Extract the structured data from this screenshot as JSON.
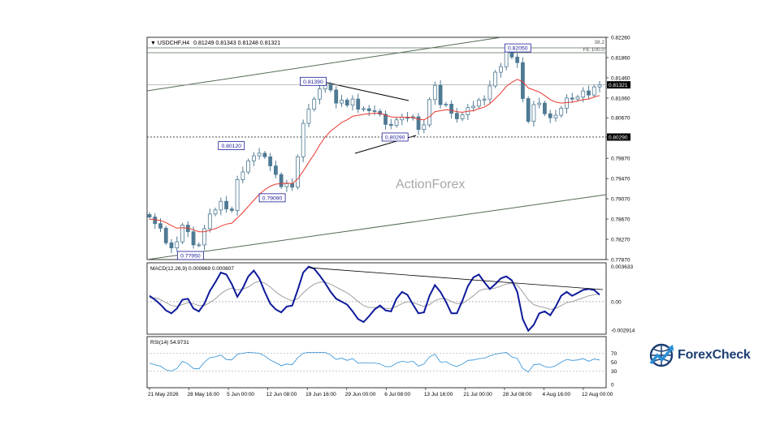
{
  "chart_data": [
    {
      "type": "candlestick",
      "title": "USDCHF,H4",
      "ohlc": "0.81249 0.81343 0.81248 0.81321",
      "ylim": [
        0.7787,
        0.8226
      ],
      "y_ticks": [
        "0.82260",
        "0.81860",
        "0.81460",
        "0.81060",
        "0.80670",
        "0.80290",
        "0.79870",
        "0.79470",
        "0.79070",
        "0.78670",
        "0.78270",
        "0.77870"
      ],
      "x_ticks": [
        "21 May 2026",
        "28 May 16:00",
        "5 Jun 00:00",
        "12 Jun 08:00",
        "19 Jun 16:00",
        "29 Jun 00:00",
        "6 Jul 08:00",
        "13 Jul 16:00",
        "21 Jul 00:00",
        "28 Jul 08:00",
        "4 Aug 16:00",
        "12 Aug 00:00"
      ],
      "current_price": "0.81321",
      "support_level": "0.80290",
      "fib_labels": [
        "38.2",
        "FE 100.0"
      ],
      "watermark": "ActionForex",
      "annotations": [
        {
          "label": "0.77950",
          "x": "28 May 16:00",
          "y": 0.7795
        },
        {
          "label": "0.80120",
          "x": "5 Jun 00:00",
          "y": 0.8012
        },
        {
          "label": "0.79090",
          "x": "12 Jun 08:00",
          "y": 0.7909
        },
        {
          "label": "0.81390",
          "x": "19 Jun 16:00",
          "y": 0.8139
        },
        {
          "label": "0.80290",
          "x": "6 Jul 08:00",
          "y": 0.8029
        },
        {
          "label": "0.82050",
          "x": "28 Jul 08:00",
          "y": 0.8205
        }
      ],
      "series": [
        {
          "name": "close",
          "values": [
            0.7871,
            0.7858,
            0.7849,
            0.782,
            0.781,
            0.7822,
            0.7855,
            0.7842,
            0.7816,
            0.7816,
            0.7848,
            0.7877,
            0.7885,
            0.7902,
            0.7887,
            0.7884,
            0.7945,
            0.796,
            0.7982,
            0.7992,
            0.7997,
            0.799,
            0.7972,
            0.7955,
            0.7931,
            0.7937,
            0.793,
            0.799,
            0.8056,
            0.8084,
            0.8104,
            0.8124,
            0.8133,
            0.8122,
            0.8096,
            0.8102,
            0.8092,
            0.8104,
            0.8084,
            0.8085,
            0.8081,
            0.808,
            0.8074,
            0.8054,
            0.8052,
            0.8063,
            0.8068,
            0.8066,
            0.8069,
            0.8044,
            0.8053,
            0.8103,
            0.8131,
            0.8093,
            0.8094,
            0.8076,
            0.8065,
            0.8073,
            0.8087,
            0.809,
            0.8102,
            0.8104,
            0.813,
            0.8157,
            0.8168,
            0.8197,
            0.8187,
            0.8176,
            0.8105,
            0.806,
            0.8093,
            0.8096,
            0.8075,
            0.8067,
            0.8072,
            0.8086,
            0.8106,
            0.8104,
            0.8108,
            0.812,
            0.8112,
            0.8128,
            0.8132
          ]
        },
        {
          "name": "moving_average",
          "values": [
            0.7867,
            0.7866,
            0.7864,
            0.786,
            0.7854,
            0.7849,
            0.785,
            0.7849,
            0.7846,
            0.7842,
            0.7842,
            0.7845,
            0.7848,
            0.7853,
            0.7857,
            0.7859,
            0.7869,
            0.788,
            0.7892,
            0.7904,
            0.7916,
            0.7925,
            0.7932,
            0.7936,
            0.7937,
            0.7938,
            0.7937,
            0.7946,
            0.7962,
            0.7979,
            0.7995,
            0.8013,
            0.8029,
            0.8041,
            0.8049,
            0.8058,
            0.8063,
            0.807,
            0.8072,
            0.8074,
            0.8075,
            0.8076,
            0.8076,
            0.8072,
            0.8069,
            0.8068,
            0.8068,
            0.8068,
            0.8068,
            0.8064,
            0.8063,
            0.8069,
            0.8079,
            0.8081,
            0.8083,
            0.8082,
            0.8079,
            0.8078,
            0.808,
            0.8081,
            0.8085,
            0.8088,
            0.8095,
            0.8105,
            0.8116,
            0.8129,
            0.8137,
            0.8143,
            0.8138,
            0.8126,
            0.8122,
            0.8118,
            0.8111,
            0.8103,
            0.8098,
            0.8096,
            0.8097,
            0.8098,
            0.81,
            0.8103,
            0.8104,
            0.8108,
            0.8111
          ]
        }
      ]
    },
    {
      "type": "line",
      "title": "MACD(12,26,9) 0.000669 0.000807",
      "ylim": [
        -0.00335,
        0.004
      ],
      "y_ticks": [
        "0.003633",
        "0.00",
        "-0.002914"
      ],
      "series": [
        {
          "name": "macd",
          "values": [
            0.0006,
            0.0002,
            -0.0003,
            -0.0009,
            -0.0012,
            -0.0007,
            0.0002,
            0.0003,
            -0.0007,
            -0.001,
            -0.0002,
            0.0011,
            0.002,
            0.003,
            0.0028,
            0.0018,
            0.0005,
            0.0014,
            0.0026,
            0.0032,
            0.0024,
            0.001,
            -0.0002,
            -0.0008,
            -0.0011,
            -0.0005,
            -0.0004,
            0.0012,
            0.003,
            0.0036,
            0.0034,
            0.0027,
            0.0019,
            0.001,
            0.0003,
            0.0,
            -0.0003,
            -0.001,
            -0.0018,
            -0.0021,
            -0.0015,
            -0.0008,
            -0.0004,
            -0.0009,
            -0.001,
            0.0003,
            0.001,
            0.0007,
            -0.0003,
            -0.0012,
            -0.0011,
            0.0006,
            0.0017,
            0.001,
            0.0,
            -0.0012,
            -0.0012,
            0.0001,
            0.0016,
            0.0025,
            0.0028,
            0.002,
            0.0013,
            0.0018,
            0.0024,
            0.0026,
            0.0022,
            0.001,
            -0.0018,
            -0.003,
            -0.0024,
            -0.0012,
            -0.001,
            -0.0014,
            -0.0005,
            0.0006,
            0.001,
            0.0006,
            0.0009,
            0.0012,
            0.0013,
            0.0012,
            0.0007
          ]
        },
        {
          "name": "signal",
          "values": [
            0.0004,
            0.0004,
            0.0002,
            -0.0001,
            -0.0004,
            -0.0005,
            -0.0003,
            -0.0001,
            -0.0002,
            -0.0004,
            -0.0004,
            -0.0001,
            0.0003,
            0.0008,
            0.0012,
            0.0014,
            0.0012,
            0.0013,
            0.0015,
            0.0019,
            0.0021,
            0.0019,
            0.0015,
            0.001,
            0.0006,
            0.0003,
            0.0001,
            0.0003,
            0.0009,
            0.0014,
            0.0018,
            0.002,
            0.002,
            0.0018,
            0.0015,
            0.0012,
            0.0009,
            0.0005,
            0.0,
            -0.0004,
            -0.0006,
            -0.0006,
            -0.0006,
            -0.0007,
            -0.0007,
            -0.0005,
            -0.0002,
            -0.0,
            -0.0001,
            -0.0003,
            -0.0005,
            -0.0003,
            0.0001,
            0.0003,
            0.0003,
            0.0,
            -0.0002,
            -0.0002,
            0.0002,
            0.0006,
            0.0011,
            0.0013,
            0.0013,
            0.0014,
            0.0016,
            0.0018,
            0.0019,
            0.0017,
            0.001,
            0.0002,
            -0.0003,
            -0.0005,
            -0.0006,
            -0.0008,
            -0.0007,
            -0.0004,
            -0.0001,
            0.0,
            0.0002,
            0.0004,
            0.0006,
            0.0007,
            0.0008
          ]
        }
      ]
    },
    {
      "type": "line",
      "title": "RSI(14) 54.9731",
      "ylim": [
        0,
        100
      ],
      "y_ticks": [
        "70",
        "50",
        "30",
        "0"
      ],
      "series": [
        {
          "name": "rsi",
          "values": [
            48,
            44,
            41,
            33,
            30,
            36,
            52,
            46,
            36,
            35,
            50,
            60,
            62,
            66,
            56,
            55,
            68,
            70,
            72,
            71,
            70,
            64,
            55,
            49,
            42,
            46,
            44,
            60,
            70,
            72,
            72,
            72,
            72,
            66,
            56,
            59,
            54,
            58,
            48,
            49,
            48,
            48,
            46,
            40,
            40,
            48,
            52,
            50,
            52,
            41,
            46,
            62,
            68,
            50,
            51,
            44,
            40,
            46,
            54,
            55,
            58,
            59,
            64,
            68,
            70,
            72,
            62,
            58,
            36,
            28,
            44,
            46,
            40,
            38,
            42,
            50,
            56,
            54,
            55,
            58,
            52,
            57,
            55
          ]
        }
      ]
    }
  ],
  "logo": {
    "text": "ForexCheck",
    "colors": {
      "primary": "#1b3f73",
      "accent": "#2a8ed6"
    }
  },
  "colors": {
    "candle": "#4f7a94",
    "ma": "#e8392e",
    "macd": "#0d1a9a",
    "signal": "#a0a0a0",
    "rsi": "#2a8ed6",
    "channel": "#556b55"
  }
}
